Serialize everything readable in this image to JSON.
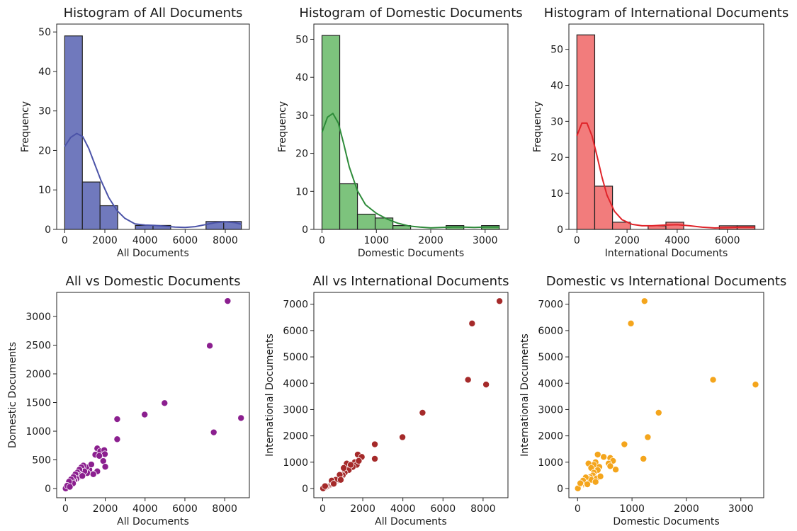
{
  "chart_data": [
    {
      "type": "bar",
      "title": "Histogram of All Documents",
      "xlabel": "All Documents",
      "ylabel": "Frequency",
      "color": "#5c66b4",
      "kde_color": "#4b53a8",
      "xlim": [
        -400,
        9200
      ],
      "ylim": [
        0,
        52
      ],
      "xticks": [
        0,
        2000,
        4000,
        6000,
        8000
      ],
      "yticks": [
        0,
        10,
        20,
        30,
        40,
        50
      ],
      "bins": [
        {
          "x0": 0,
          "x1": 880,
          "count": 49
        },
        {
          "x0": 880,
          "x1": 1760,
          "count": 12
        },
        {
          "x0": 1760,
          "x1": 2640,
          "count": 6
        },
        {
          "x0": 2640,
          "x1": 3520,
          "count": 0
        },
        {
          "x0": 3520,
          "x1": 4400,
          "count": 1
        },
        {
          "x0": 4400,
          "x1": 5280,
          "count": 1
        },
        {
          "x0": 5280,
          "x1": 6160,
          "count": 0
        },
        {
          "x0": 6160,
          "x1": 7040,
          "count": 0
        },
        {
          "x0": 7040,
          "x1": 7920,
          "count": 2
        },
        {
          "x0": 7920,
          "x1": 8800,
          "count": 2
        }
      ],
      "kde": {
        "x": [
          0,
          300,
          600,
          900,
          1200,
          1500,
          1800,
          2200,
          2600,
          3000,
          3500,
          4000,
          4500,
          5000,
          5500,
          6000,
          6500,
          7000,
          7500,
          8000,
          8500,
          8800
        ],
        "y": [
          21,
          23.3,
          24.3,
          23.5,
          20.5,
          16.5,
          12.5,
          8,
          4.8,
          2.8,
          1.4,
          1.1,
          1,
          0.8,
          0.6,
          0.5,
          0.7,
          1.2,
          1.7,
          1.9,
          1.7,
          1.3
        ]
      }
    },
    {
      "type": "bar",
      "title": "Histogram of Domestic Documents",
      "xlabel": "Domestic Documents",
      "ylabel": "Frequency",
      "color": "#6bbb6b",
      "kde_color": "#2e8b3a",
      "xlim": [
        -150,
        3420
      ],
      "ylim": [
        0,
        54
      ],
      "xticks": [
        0,
        1000,
        2000,
        3000
      ],
      "yticks": [
        0,
        10,
        20,
        30,
        40,
        50
      ],
      "bins": [
        {
          "x0": 0,
          "x1": 326,
          "count": 51
        },
        {
          "x0": 326,
          "x1": 652,
          "count": 12
        },
        {
          "x0": 652,
          "x1": 978,
          "count": 4
        },
        {
          "x0": 978,
          "x1": 1304,
          "count": 3
        },
        {
          "x0": 1304,
          "x1": 1630,
          "count": 1
        },
        {
          "x0": 1630,
          "x1": 1956,
          "count": 0
        },
        {
          "x0": 1956,
          "x1": 2282,
          "count": 0
        },
        {
          "x0": 2282,
          "x1": 2608,
          "count": 1
        },
        {
          "x0": 2608,
          "x1": 2934,
          "count": 0
        },
        {
          "x0": 2934,
          "x1": 3260,
          "count": 1
        }
      ],
      "kde": {
        "x": [
          0,
          100,
          200,
          300,
          400,
          500,
          650,
          800,
          1000,
          1200,
          1400,
          1600,
          1800,
          2000,
          2200,
          2400,
          2600,
          2800,
          3000,
          3260
        ],
        "y": [
          25.5,
          29.5,
          30.5,
          28,
          22.5,
          16.5,
          10.2,
          6.5,
          4.2,
          2.7,
          1.6,
          0.9,
          0.6,
          0.4,
          0.5,
          0.6,
          0.6,
          0.5,
          0.6,
          0.6
        ]
      }
    },
    {
      "type": "bar",
      "title": "Histogram of International Documents",
      "xlabel": "International Documents",
      "ylabel": "Frequency",
      "color": "#f06a6a",
      "kde_color": "#e0242a",
      "xlim": [
        -320,
        7450
      ],
      "ylim": [
        0,
        57
      ],
      "xticks": [
        0,
        2000,
        4000,
        6000
      ],
      "yticks": [
        0,
        10,
        20,
        30,
        40,
        50
      ],
      "bins": [
        {
          "x0": 0,
          "x1": 710,
          "count": 54
        },
        {
          "x0": 710,
          "x1": 1420,
          "count": 12
        },
        {
          "x0": 1420,
          "x1": 2130,
          "count": 2
        },
        {
          "x0": 2130,
          "x1": 2840,
          "count": 0
        },
        {
          "x0": 2840,
          "x1": 3550,
          "count": 1
        },
        {
          "x0": 3550,
          "x1": 4260,
          "count": 2
        },
        {
          "x0": 4260,
          "x1": 4970,
          "count": 0
        },
        {
          "x0": 4970,
          "x1": 5680,
          "count": 0
        },
        {
          "x0": 5680,
          "x1": 6390,
          "count": 1
        },
        {
          "x0": 6390,
          "x1": 7100,
          "count": 1
        }
      ],
      "kde": {
        "x": [
          0,
          200,
          400,
          600,
          800,
          1000,
          1200,
          1500,
          1800,
          2200,
          2600,
          3000,
          3500,
          4000,
          4500,
          5000,
          5500,
          6000,
          6500,
          7100
        ],
        "y": [
          26,
          29.5,
          29.5,
          26,
          20.5,
          14.5,
          9.5,
          5,
          2.7,
          1.4,
          1,
          1,
          1.2,
          1.3,
          1,
          0.6,
          0.4,
          0.5,
          0.6,
          0.6
        ]
      }
    },
    {
      "type": "scatter",
      "title": "All vs Domestic Documents",
      "xlabel": "All Documents",
      "ylabel": "Domestic Documents",
      "color": "#8b1f8f",
      "xlim": [
        -440,
        9240
      ],
      "ylim": [
        -160,
        3420
      ],
      "xticks": [
        0,
        2000,
        4000,
        6000,
        8000
      ],
      "yticks": [
        0,
        500,
        1000,
        1500,
        2000,
        2500,
        3000
      ],
      "points": [
        [
          8150,
          3270
        ],
        [
          7250,
          2490
        ],
        [
          4980,
          1490
        ],
        [
          3980,
          1290
        ],
        [
          8820,
          1230
        ],
        [
          7450,
          980
        ],
        [
          2600,
          1210
        ],
        [
          2600,
          860
        ],
        [
          1600,
          700
        ],
        [
          1750,
          650
        ],
        [
          1950,
          670
        ],
        [
          1980,
          600
        ],
        [
          1500,
          590
        ],
        [
          1700,
          570
        ],
        [
          1900,
          480
        ],
        [
          2000,
          380
        ],
        [
          1600,
          300
        ],
        [
          1200,
          330
        ],
        [
          1050,
          370
        ],
        [
          900,
          400
        ],
        [
          800,
          370
        ],
        [
          1100,
          270
        ],
        [
          950,
          300
        ],
        [
          700,
          330
        ],
        [
          600,
          280
        ],
        [
          750,
          230
        ],
        [
          650,
          200
        ],
        [
          500,
          250
        ],
        [
          550,
          170
        ],
        [
          450,
          150
        ],
        [
          400,
          200
        ],
        [
          350,
          130
        ],
        [
          300,
          100
        ],
        [
          250,
          80
        ],
        [
          200,
          60
        ],
        [
          150,
          40
        ],
        [
          100,
          30
        ],
        [
          60,
          20
        ],
        [
          30,
          10
        ],
        [
          20,
          5
        ],
        [
          10,
          2
        ],
        [
          120,
          70
        ],
        [
          280,
          160
        ],
        [
          380,
          90
        ],
        [
          180,
          120
        ],
        [
          90,
          50
        ],
        [
          220,
          30
        ],
        [
          1300,
          420
        ],
        [
          1400,
          250
        ],
        [
          850,
          220
        ]
      ]
    },
    {
      "type": "scatter",
      "title": "All vs International Documents",
      "xlabel": "All Documents",
      "ylabel": "International Documents",
      "color": "#a52a2a",
      "xlim": [
        -440,
        9240
      ],
      "ylim": [
        -350,
        7450
      ],
      "xticks": [
        0,
        2000,
        4000,
        6000,
        8000
      ],
      "yticks": [
        0,
        1000,
        2000,
        3000,
        4000,
        5000,
        6000,
        7000
      ],
      "points": [
        [
          8820,
          7120
        ],
        [
          7450,
          6270
        ],
        [
          7250,
          4130
        ],
        [
          8150,
          3950
        ],
        [
          4980,
          2880
        ],
        [
          3980,
          1950
        ],
        [
          2600,
          1680
        ],
        [
          2600,
          1130
        ],
        [
          1750,
          1290
        ],
        [
          1950,
          1200
        ],
        [
          1600,
          1000
        ],
        [
          1700,
          900
        ],
        [
          1500,
          820
        ],
        [
          1200,
          950
        ],
        [
          1300,
          700
        ],
        [
          1100,
          600
        ],
        [
          1000,
          500
        ],
        [
          900,
          430
        ],
        [
          800,
          380
        ],
        [
          700,
          300
        ],
        [
          600,
          250
        ],
        [
          500,
          200
        ],
        [
          400,
          160
        ],
        [
          350,
          120
        ],
        [
          300,
          100
        ],
        [
          250,
          80
        ],
        [
          200,
          60
        ],
        [
          150,
          40
        ],
        [
          100,
          30
        ],
        [
          50,
          20
        ],
        [
          20,
          5
        ],
        [
          1400,
          900
        ],
        [
          1050,
          780
        ],
        [
          850,
          520
        ],
        [
          650,
          330
        ],
        [
          450,
          300
        ],
        [
          1800,
          1050
        ],
        [
          900,
          330
        ],
        [
          550,
          180
        ],
        [
          120,
          90
        ]
      ]
    },
    {
      "type": "scatter",
      "title": "Domestic vs International Documents",
      "xlabel": "Domestic Documents",
      "ylabel": "International Documents",
      "color": "#f4a51c",
      "xlim": [
        -160,
        3420
      ],
      "ylim": [
        -350,
        7450
      ],
      "xticks": [
        0,
        1000,
        2000,
        3000
      ],
      "yticks": [
        0,
        1000,
        2000,
        3000,
        4000,
        5000,
        6000,
        7000
      ],
      "points": [
        [
          1230,
          7120
        ],
        [
          980,
          6270
        ],
        [
          2490,
          4130
        ],
        [
          3270,
          3950
        ],
        [
          1490,
          2880
        ],
        [
          1290,
          1950
        ],
        [
          860,
          1680
        ],
        [
          1210,
          1130
        ],
        [
          370,
          1290
        ],
        [
          480,
          1200
        ],
        [
          600,
          1160
        ],
        [
          650,
          1050
        ],
        [
          700,
          720
        ],
        [
          570,
          950
        ],
        [
          600,
          850
        ],
        [
          330,
          1000
        ],
        [
          300,
          900
        ],
        [
          400,
          820
        ],
        [
          200,
          950
        ],
        [
          250,
          780
        ],
        [
          370,
          700
        ],
        [
          300,
          600
        ],
        [
          280,
          500
        ],
        [
          230,
          430
        ],
        [
          200,
          380
        ],
        [
          170,
          300
        ],
        [
          150,
          250
        ],
        [
          130,
          200
        ],
        [
          100,
          160
        ],
        [
          80,
          120
        ],
        [
          60,
          100
        ],
        [
          40,
          80
        ],
        [
          30,
          60
        ],
        [
          20,
          40
        ],
        [
          10,
          20
        ],
        [
          5,
          5
        ],
        [
          350,
          380
        ],
        [
          250,
          330
        ],
        [
          150,
          420
        ],
        [
          100,
          300
        ],
        [
          420,
          460
        ],
        [
          330,
          250
        ],
        [
          180,
          160
        ],
        [
          50,
          200
        ]
      ]
    }
  ]
}
